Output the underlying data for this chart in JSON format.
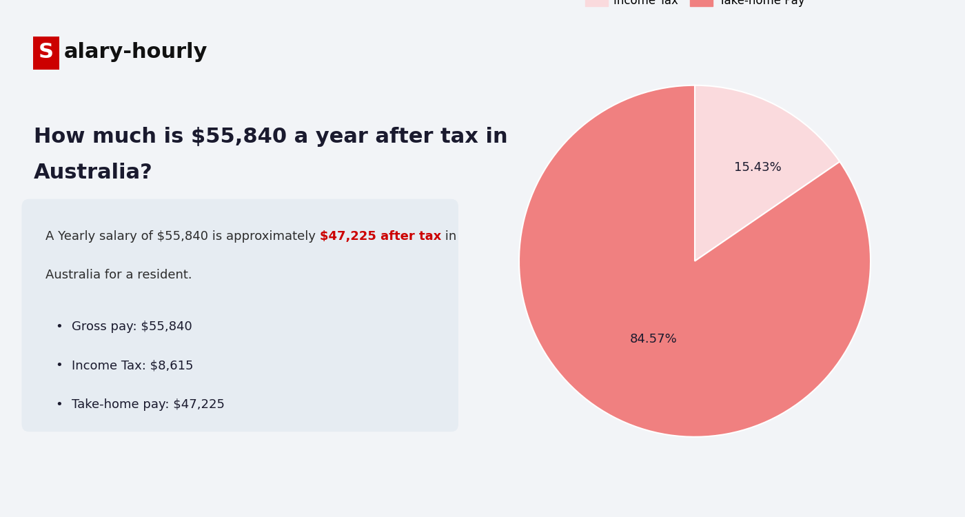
{
  "background_color": "#f2f4f7",
  "logo_s_bg": "#cc0000",
  "logo_s_text": "S",
  "logo_rest": "alary-hourly",
  "heading_line1": "How much is $55,840 a year after tax in",
  "heading_line2": "Australia?",
  "heading_color": "#1a1a2e",
  "box_bg": "#e6ecf2",
  "box_text_normal": "A Yearly salary of $55,840 is approximately ",
  "box_text_highlight": "$47,225 after tax",
  "box_text_end": " in",
  "box_text_line2": "Australia for a resident.",
  "highlight_color": "#cc0000",
  "bullet_items": [
    "Gross pay: $55,840",
    "Income Tax: $8,615",
    "Take-home pay: $47,225"
  ],
  "bullet_color": "#1a1a2e",
  "pie_values": [
    15.43,
    84.57
  ],
  "pie_labels": [
    "Income Tax",
    "Take-home Pay"
  ],
  "pie_colors": [
    "#fadadd",
    "#f08080"
  ],
  "pie_pct_labels": [
    "15.43%",
    "84.57%"
  ],
  "pie_text_color": "#1a1a2e",
  "legend_colors": [
    "#fadadd",
    "#f08080"
  ],
  "normal_text_color": "#2c2c2c",
  "font_size_heading": 22,
  "font_size_body": 13,
  "font_size_bullet": 13,
  "font_size_logo": 22,
  "font_size_pie_pct": 13
}
